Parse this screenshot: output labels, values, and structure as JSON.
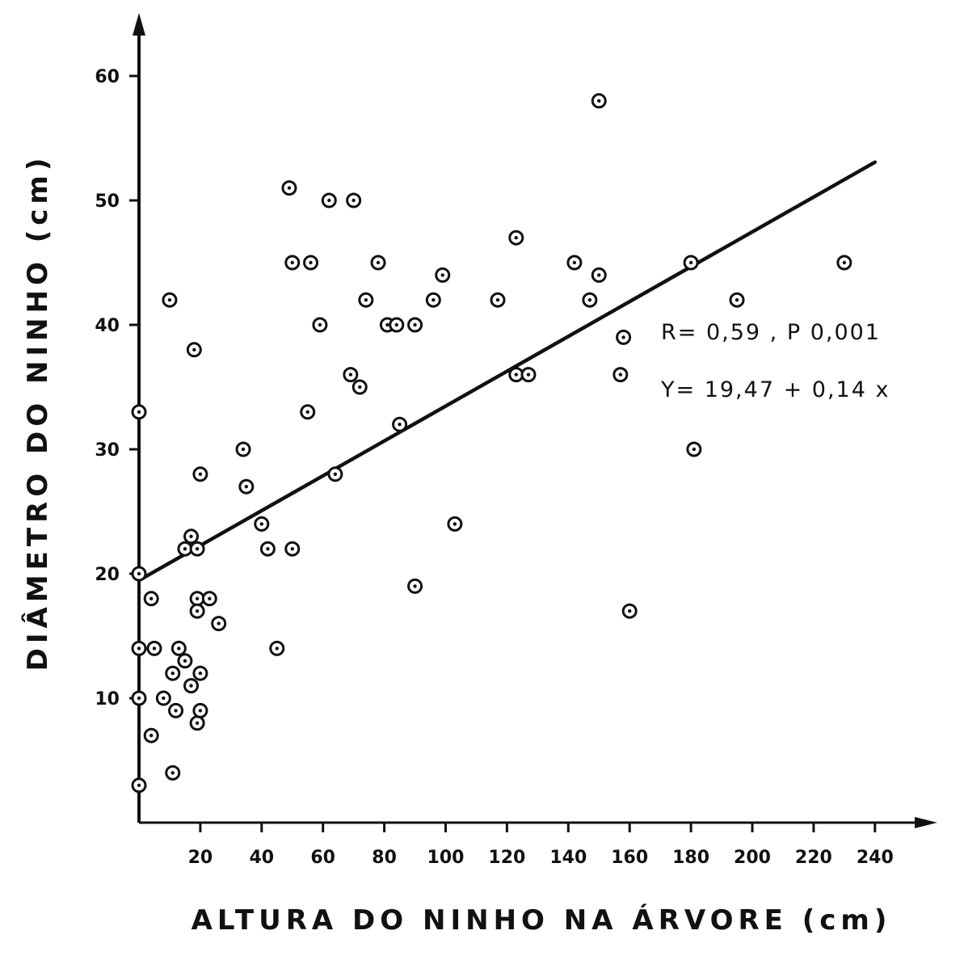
{
  "chart_data": {
    "type": "scatter",
    "title": "",
    "xlabel": "ALTURA DO NINHO NA ÁRVORE (cm)",
    "ylabel": "DIÂMETRO DO NINHO (cm)",
    "xlim": [
      0,
      255
    ],
    "ylim": [
      0,
      65
    ],
    "xticks": [
      20,
      40,
      60,
      80,
      100,
      120,
      140,
      160,
      180,
      200,
      220,
      240
    ],
    "yticks": [
      10,
      20,
      30,
      40,
      50,
      60
    ],
    "grid": false,
    "annotations": {
      "stats": "R= 0,59  ,  P   0,001",
      "equation": "Y= 19,47 + 0,14 x"
    },
    "regression": {
      "intercept": 19.47,
      "slope": 0.14,
      "x_range": [
        0,
        240
      ]
    },
    "series": [
      {
        "points": [
          [
            0,
            33
          ],
          [
            0,
            20
          ],
          [
            0,
            14
          ],
          [
            0,
            10
          ],
          [
            0,
            3
          ],
          [
            4,
            18
          ],
          [
            4,
            7
          ],
          [
            5,
            14
          ],
          [
            8,
            10
          ],
          [
            10,
            42
          ],
          [
            11,
            4
          ],
          [
            11,
            12
          ],
          [
            12,
            9
          ],
          [
            13,
            14
          ],
          [
            15,
            13
          ],
          [
            15,
            22
          ],
          [
            17,
            23
          ],
          [
            17,
            11
          ],
          [
            18,
            38
          ],
          [
            19,
            22
          ],
          [
            19,
            18
          ],
          [
            19,
            17
          ],
          [
            19,
            8
          ],
          [
            20,
            12
          ],
          [
            20,
            9
          ],
          [
            20,
            28
          ],
          [
            23,
            18
          ],
          [
            26,
            16
          ],
          [
            34,
            30
          ],
          [
            35,
            27
          ],
          [
            40,
            24
          ],
          [
            42,
            22
          ],
          [
            45,
            14
          ],
          [
            49,
            51
          ],
          [
            50,
            45
          ],
          [
            50,
            22
          ],
          [
            55,
            33
          ],
          [
            56,
            45
          ],
          [
            59,
            40
          ],
          [
            62,
            50
          ],
          [
            64,
            28
          ],
          [
            69,
            36
          ],
          [
            70,
            50
          ],
          [
            72,
            35
          ],
          [
            74,
            42
          ],
          [
            78,
            45
          ],
          [
            81,
            40
          ],
          [
            84,
            40
          ],
          [
            85,
            32
          ],
          [
            90,
            40
          ],
          [
            90,
            19
          ],
          [
            96,
            42
          ],
          [
            99,
            44
          ],
          [
            103,
            24
          ],
          [
            117,
            42
          ],
          [
            123,
            47
          ],
          [
            123,
            36
          ],
          [
            127,
            36
          ],
          [
            142,
            45
          ],
          [
            147,
            42
          ],
          [
            150,
            58
          ],
          [
            150,
            44
          ],
          [
            157,
            36
          ],
          [
            158,
            39
          ],
          [
            160,
            17
          ],
          [
            180,
            45
          ],
          [
            181,
            30
          ],
          [
            195,
            42
          ],
          [
            230,
            45
          ]
        ]
      }
    ]
  }
}
